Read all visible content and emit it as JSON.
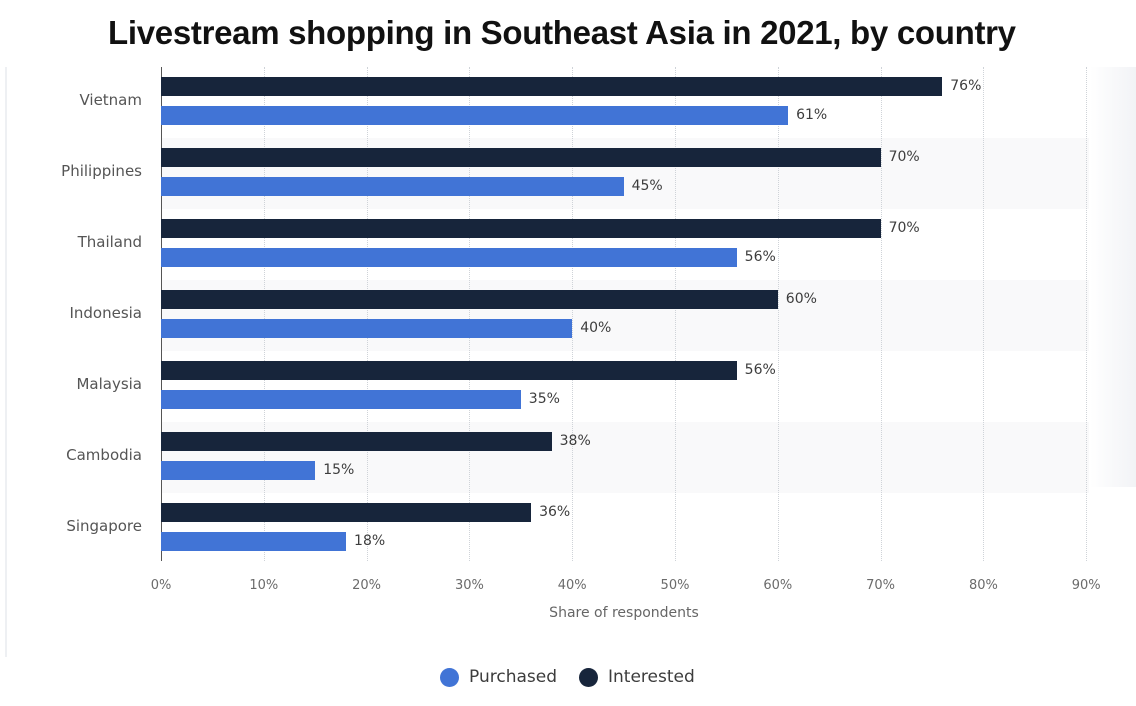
{
  "title": "Livestream shopping in Southeast Asia in 2021, by country",
  "colors": {
    "purchased": "#4174d6",
    "interested": "#17253b",
    "band": "#f9f9fa"
  },
  "x_axis": {
    "label": "Share of respondents",
    "ticks": [
      "0%",
      "10%",
      "20%",
      "30%",
      "40%",
      "50%",
      "60%",
      "70%",
      "80%",
      "90%"
    ]
  },
  "legend": [
    {
      "label": "Purchased",
      "color": "#4174d6"
    },
    {
      "label": "Interested",
      "color": "#17253b"
    }
  ],
  "rows": [
    {
      "country": "Vietnam",
      "interested": 76,
      "interested_label": "76%",
      "purchased": 61,
      "purchased_label": "61%"
    },
    {
      "country": "Philippines",
      "interested": 70,
      "interested_label": "70%",
      "purchased": 45,
      "purchased_label": "45%"
    },
    {
      "country": "Thailand",
      "interested": 70,
      "interested_label": "70%",
      "purchased": 56,
      "purchased_label": "56%"
    },
    {
      "country": "Indonesia",
      "interested": 60,
      "interested_label": "60%",
      "purchased": 40,
      "purchased_label": "40%"
    },
    {
      "country": "Malaysia",
      "interested": 56,
      "interested_label": "56%",
      "purchased": 35,
      "purchased_label": "35%"
    },
    {
      "country": "Cambodia",
      "interested": 38,
      "interested_label": "38%",
      "purchased": 15,
      "purchased_label": "15%"
    },
    {
      "country": "Singapore",
      "interested": 36,
      "interested_label": "36%",
      "purchased": 18,
      "purchased_label": "18%"
    }
  ],
  "chart_data": {
    "type": "bar",
    "orientation": "horizontal",
    "title": "Livestream shopping in Southeast Asia in 2021, by country",
    "categories": [
      "Vietnam",
      "Philippines",
      "Thailand",
      "Indonesia",
      "Malaysia",
      "Cambodia",
      "Singapore"
    ],
    "series": [
      {
        "name": "Interested",
        "color": "#17253b",
        "values": [
          76,
          70,
          70,
          60,
          56,
          38,
          36
        ]
      },
      {
        "name": "Purchased",
        "color": "#4174d6",
        "values": [
          61,
          45,
          56,
          40,
          35,
          15,
          18
        ]
      }
    ],
    "xlabel": "Share of respondents",
    "ylabel": "",
    "xlim": [
      0,
      90
    ],
    "x_ticks": [
      "0%",
      "10%",
      "20%",
      "30%",
      "40%",
      "50%",
      "60%",
      "70%",
      "80%",
      "90%"
    ],
    "unit": "%",
    "grid": "vertical dotted",
    "legend_position": "bottom",
    "data_labels": true
  }
}
